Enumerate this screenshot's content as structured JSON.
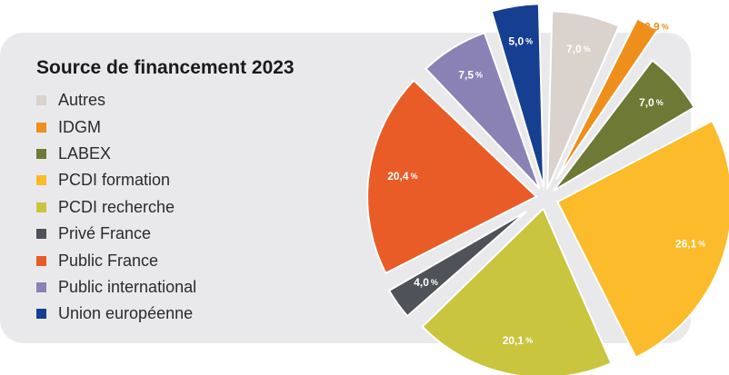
{
  "chart_data": {
    "type": "pie",
    "title": "Source de financement 2023",
    "legend_position": "left",
    "slices": [
      {
        "name": "Autres",
        "value": 7.0,
        "label": "7,0",
        "color": "#d9d2cd",
        "label_color": "#ffffff"
      },
      {
        "name": "IDGM",
        "value": 2.9,
        "label": "2,9",
        "color": "#ee8f1c",
        "label_color": "#ee8f1c"
      },
      {
        "name": "LABEX",
        "value": 7.0,
        "label": "7,0",
        "color": "#6e7935",
        "label_color": "#ffffff"
      },
      {
        "name": "PCDI formation",
        "value": 26.1,
        "label": "26,1",
        "color": "#fbbb2a",
        "label_color": "#ffffff"
      },
      {
        "name": "PCDI recherche",
        "value": 20.1,
        "label": "20,1",
        "color": "#c9c53f",
        "label_color": "#ffffff"
      },
      {
        "name": "Privé France",
        "value": 4.0,
        "label": "4,0",
        "color": "#4f5259",
        "label_color": "#ffffff"
      },
      {
        "name": "Public France",
        "value": 20.4,
        "label": "20,4",
        "color": "#e95c27",
        "label_color": "#ffffff"
      },
      {
        "name": "Public international",
        "value": 7.5,
        "label": "7,5",
        "color": "#8a82b5",
        "label_color": "#ffffff"
      },
      {
        "name": "Union européenne",
        "value": 5.0,
        "label": "5,0",
        "color": "#173f91",
        "label_color": "#ffffff"
      }
    ],
    "unit": "%"
  }
}
